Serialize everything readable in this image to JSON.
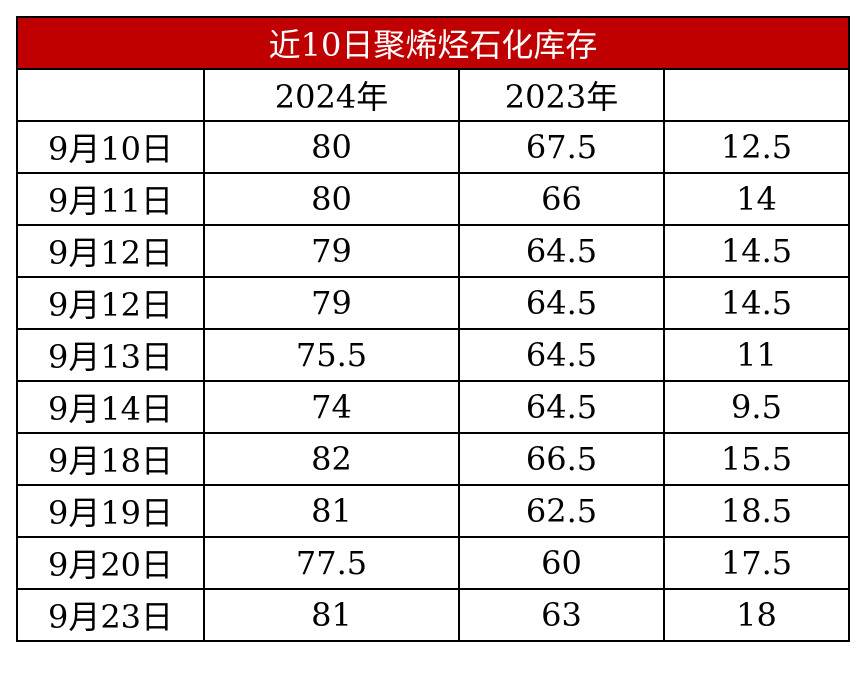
{
  "title": "近10日聚烯烃石化库存",
  "header": [
    "2024年",
    "2023年"
  ],
  "rows": [
    [
      "9月10日",
      80,
      67.5,
      12.5
    ],
    [
      "9月11日",
      80,
      66,
      14
    ],
    [
      "9月12日",
      79,
      64.5,
      14.5
    ],
    [
      "9月12日",
      79,
      64.5,
      14.5
    ],
    [
      "9月13日",
      75.5,
      64.5,
      11
    ],
    [
      "9月14日",
      74,
      64.5,
      9.5
    ],
    [
      "9月18日",
      82,
      66.5,
      15.5
    ],
    [
      "9月19日",
      81,
      62.5,
      18.5
    ],
    [
      "9月20日",
      77.5,
      60,
      17.5
    ],
    [
      "9月23日",
      81,
      63,
      18
    ]
  ]
}
